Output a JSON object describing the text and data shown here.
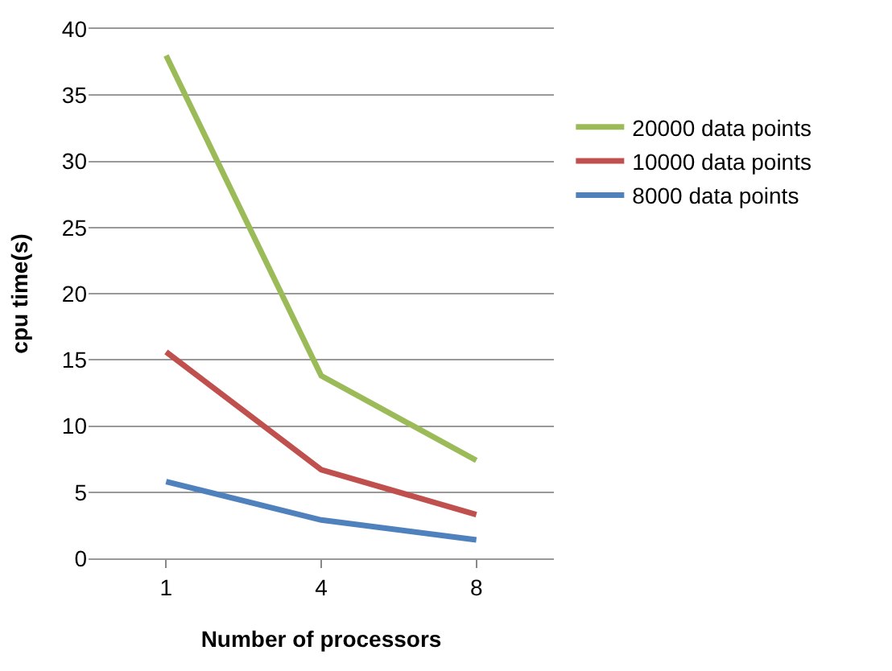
{
  "chart_data": {
    "type": "line",
    "xlabel": "Number of processors",
    "ylabel": "cpu time(s)",
    "categories": [
      "1",
      "4",
      "8"
    ],
    "series": [
      {
        "name": "20000 data points",
        "color": "#9bbb59",
        "values": [
          38,
          13.8,
          7.4
        ]
      },
      {
        "name": "10000 data points",
        "color": "#c0504d",
        "values": [
          15.6,
          6.7,
          3.3
        ]
      },
      {
        "name": "8000 data points",
        "color": "#4f81bd",
        "values": [
          5.8,
          2.9,
          1.4
        ]
      }
    ],
    "ylim": [
      0,
      40
    ],
    "yticks": [
      0,
      5,
      10,
      15,
      20,
      25,
      30,
      35,
      40
    ],
    "grid": "y",
    "legend": "right",
    "marker": "none",
    "line_style": "solid"
  }
}
